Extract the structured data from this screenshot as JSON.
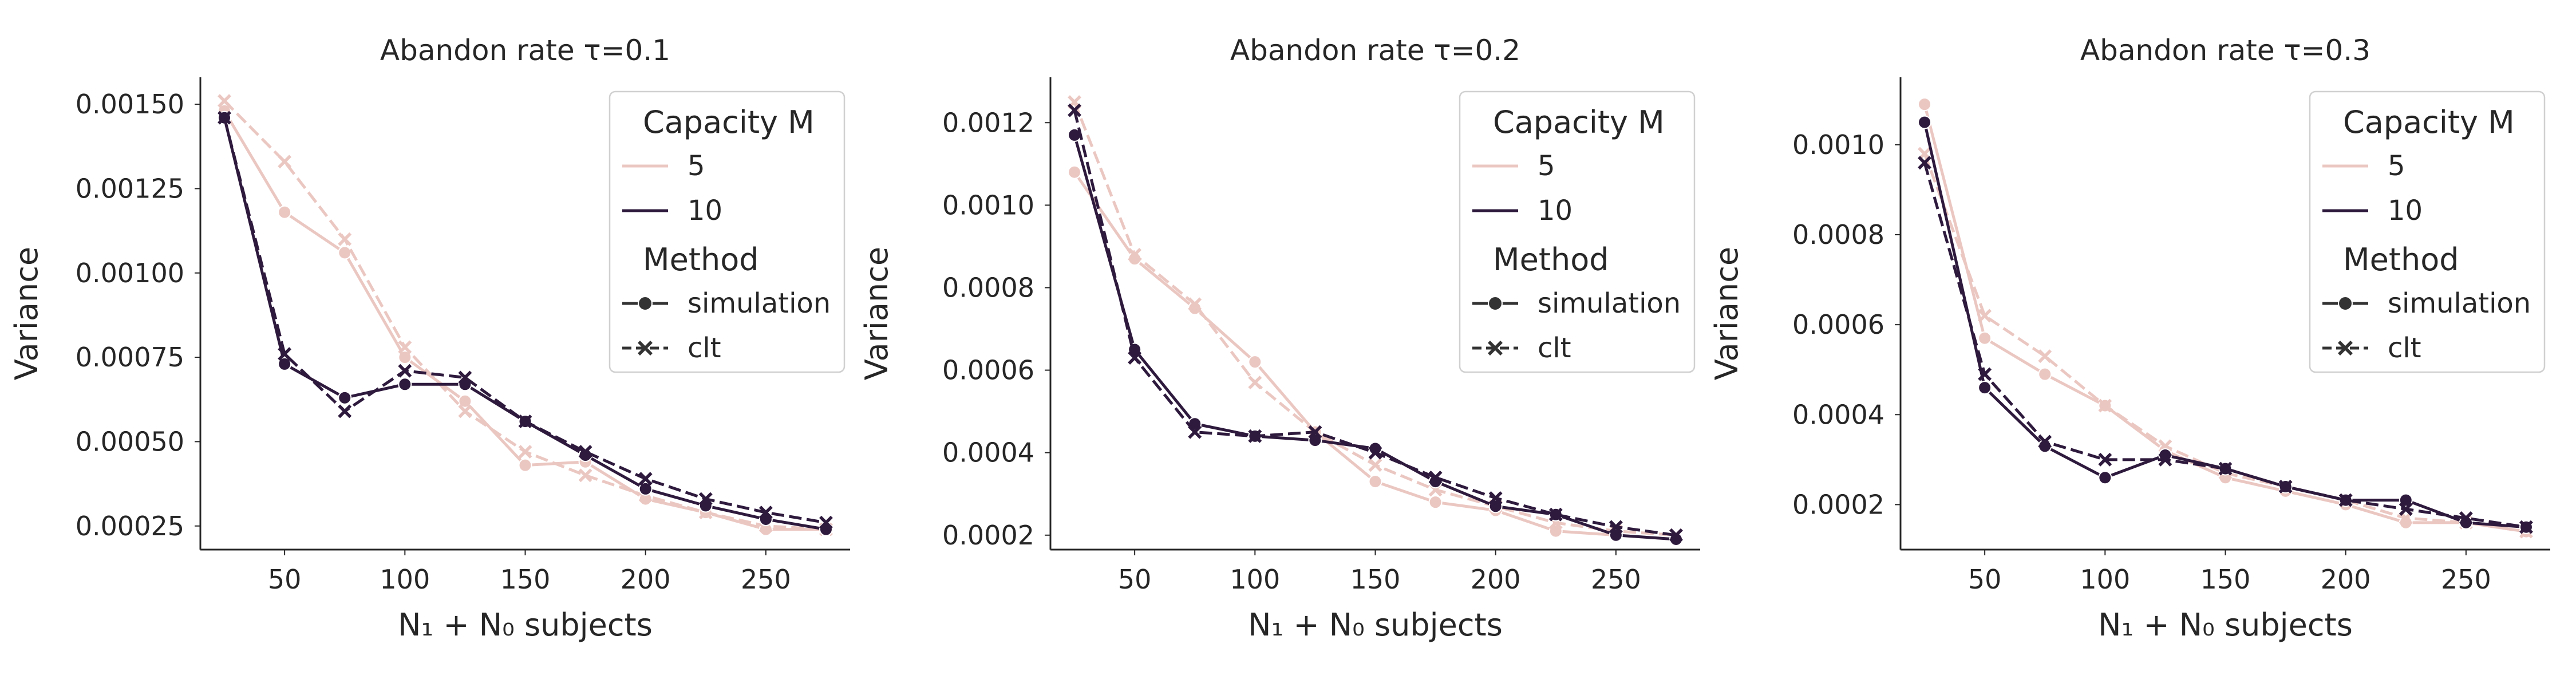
{
  "chart_data": [
    {
      "type": "line",
      "title": "Abandon rate τ=0.1",
      "xlabel": "N₁ + N₀ subjects",
      "ylabel": "Variance",
      "xlim": [
        15,
        285
      ],
      "ylim": [
        0.00018,
        0.00158
      ],
      "xticks": [
        50,
        100,
        150,
        200,
        250
      ],
      "yticks": [
        0.00025,
        0.0005,
        0.00075,
        0.001,
        0.00125,
        0.0015
      ],
      "ytick_labels": [
        "0.00025",
        "0.00050",
        "0.00075",
        "0.00100",
        "0.00125",
        "0.00150"
      ],
      "x": [
        25,
        50,
        75,
        100,
        125,
        150,
        175,
        200,
        225,
        250,
        275
      ],
      "series": [
        {
          "name": "M=5 simulation",
          "capacity": "5",
          "method": "simulation",
          "color": "#ebc7c2",
          "dashed": false,
          "marker": "circle",
          "values": [
            0.00148,
            0.00118,
            0.00106,
            0.00075,
            0.00062,
            0.00043,
            0.00044,
            0.00033,
            0.00029,
            0.00024,
            0.00024
          ]
        },
        {
          "name": "M=5 clt",
          "capacity": "5",
          "method": "clt",
          "color": "#ebc7c2",
          "dashed": true,
          "marker": "x",
          "values": [
            0.00151,
            0.00133,
            0.0011,
            0.00078,
            0.00059,
            0.00047,
            0.0004,
            0.00034,
            0.00029,
            0.00025,
            0.00024
          ]
        },
        {
          "name": "M=10 simulation",
          "capacity": "10",
          "method": "simulation",
          "color": "#2e1a3d",
          "dashed": false,
          "marker": "circle",
          "values": [
            0.00146,
            0.00073,
            0.00063,
            0.00067,
            0.00067,
            0.00056,
            0.00046,
            0.00036,
            0.00031,
            0.00027,
            0.00024
          ]
        },
        {
          "name": "M=10 clt",
          "capacity": "10",
          "method": "clt",
          "color": "#2e1a3d",
          "dashed": true,
          "marker": "x",
          "values": [
            0.00146,
            0.00076,
            0.00059,
            0.00071,
            0.00069,
            0.00056,
            0.00047,
            0.00039,
            0.00033,
            0.00029,
            0.00026
          ]
        }
      ]
    },
    {
      "type": "line",
      "title": "Abandon rate τ=0.2",
      "xlabel": "N₁ + N₀ subjects",
      "ylabel": "Variance",
      "xlim": [
        15,
        285
      ],
      "ylim": [
        0.000165,
        0.00131
      ],
      "xticks": [
        50,
        100,
        150,
        200,
        250
      ],
      "yticks": [
        0.0002,
        0.0004,
        0.0006,
        0.0008,
        0.001,
        0.0012
      ],
      "ytick_labels": [
        "0.0002",
        "0.0004",
        "0.0006",
        "0.0008",
        "0.0010",
        "0.0012"
      ],
      "x": [
        25,
        50,
        75,
        100,
        125,
        150,
        175,
        200,
        225,
        250,
        275
      ],
      "series": [
        {
          "name": "M=5 simulation",
          "capacity": "5",
          "method": "simulation",
          "color": "#ebc7c2",
          "dashed": false,
          "marker": "circle",
          "values": [
            0.00108,
            0.00087,
            0.00075,
            0.00062,
            0.00045,
            0.00033,
            0.00028,
            0.00026,
            0.00021,
            0.0002,
            0.00019
          ]
        },
        {
          "name": "M=5 clt",
          "capacity": "5",
          "method": "clt",
          "color": "#ebc7c2",
          "dashed": true,
          "marker": "x",
          "values": [
            0.00125,
            0.00088,
            0.00076,
            0.00057,
            0.00045,
            0.00037,
            0.00031,
            0.00027,
            0.00023,
            0.00021,
            0.0002
          ]
        },
        {
          "name": "M=10 simulation",
          "capacity": "10",
          "method": "simulation",
          "color": "#2e1a3d",
          "dashed": false,
          "marker": "circle",
          "values": [
            0.00117,
            0.00065,
            0.00047,
            0.00044,
            0.00043,
            0.00041,
            0.00033,
            0.00027,
            0.00025,
            0.0002,
            0.00019
          ]
        },
        {
          "name": "M=10 clt",
          "capacity": "10",
          "method": "clt",
          "color": "#2e1a3d",
          "dashed": true,
          "marker": "x",
          "values": [
            0.00123,
            0.00063,
            0.00045,
            0.00044,
            0.00045,
            0.0004,
            0.00034,
            0.00029,
            0.00025,
            0.00022,
            0.0002
          ]
        }
      ]
    },
    {
      "type": "line",
      "title": "Abandon rate τ=0.3",
      "xlabel": "N₁ + N₀ subjects",
      "ylabel": "Variance",
      "xlim": [
        15,
        285
      ],
      "ylim": [
        0.0001,
        0.00115
      ],
      "xticks": [
        50,
        100,
        150,
        200,
        250
      ],
      "yticks": [
        0.0002,
        0.0004,
        0.0006,
        0.0008,
        0.001
      ],
      "ytick_labels": [
        "0.0002",
        "0.0004",
        "0.0006",
        "0.0008",
        "0.0010"
      ],
      "x": [
        25,
        50,
        75,
        100,
        125,
        150,
        175,
        200,
        225,
        250,
        275
      ],
      "series": [
        {
          "name": "M=5 simulation",
          "capacity": "5",
          "method": "simulation",
          "color": "#ebc7c2",
          "dashed": false,
          "marker": "circle",
          "values": [
            0.00109,
            0.00057,
            0.00049,
            0.00042,
            0.00032,
            0.00026,
            0.00023,
            0.0002,
            0.00016,
            0.00016,
            0.00014
          ]
        },
        {
          "name": "M=5 clt",
          "capacity": "5",
          "method": "clt",
          "color": "#ebc7c2",
          "dashed": true,
          "marker": "x",
          "values": [
            0.00098,
            0.00062,
            0.00053,
            0.00042,
            0.00033,
            0.00027,
            0.00024,
            0.00021,
            0.00017,
            0.00016,
            0.00014
          ]
        },
        {
          "name": "M=10 simulation",
          "capacity": "10",
          "method": "simulation",
          "color": "#2e1a3d",
          "dashed": false,
          "marker": "circle",
          "values": [
            0.00105,
            0.00046,
            0.00033,
            0.00026,
            0.00031,
            0.00028,
            0.00024,
            0.00021,
            0.00021,
            0.00016,
            0.00015
          ]
        },
        {
          "name": "M=10 clt",
          "capacity": "10",
          "method": "clt",
          "color": "#2e1a3d",
          "dashed": true,
          "marker": "x",
          "values": [
            0.00096,
            0.00049,
            0.00034,
            0.0003,
            0.0003,
            0.00028,
            0.00024,
            0.00021,
            0.00019,
            0.00017,
            0.00015
          ]
        }
      ]
    }
  ],
  "legend": {
    "capacity_title": "Capacity M",
    "capacity_items": [
      {
        "label": "5",
        "color": "#ebc7c2"
      },
      {
        "label": "10",
        "color": "#2e1a3d"
      }
    ],
    "method_title": "Method",
    "method_items": [
      {
        "label": "simulation",
        "marker": "circle",
        "dashed": false,
        "color": "#333333"
      },
      {
        "label": "clt",
        "marker": "x",
        "dashed": true,
        "color": "#333333"
      }
    ]
  }
}
